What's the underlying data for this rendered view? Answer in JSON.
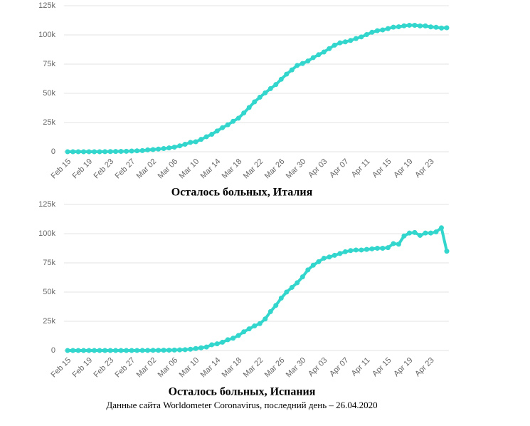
{
  "chart_data": [
    {
      "type": "line",
      "title": "Осталось больных, Италия",
      "color": "#33d6cc",
      "grid": true,
      "ylim": [
        0,
        125000
      ],
      "yticks": [
        0,
        {
          "value": 25000,
          "label": "25k"
        },
        {
          "value": 50000,
          "label": "50k"
        },
        {
          "value": 75000,
          "label": "75k"
        },
        {
          "value": 100000,
          "label": "100k"
        },
        {
          "value": 125000,
          "label": "125k"
        }
      ],
      "categories": [
        "Feb 15",
        null,
        null,
        null,
        "Feb 19",
        null,
        null,
        null,
        "Feb 23",
        null,
        null,
        null,
        "Feb 27",
        null,
        null,
        null,
        "Mar 02",
        null,
        null,
        null,
        "Mar 06",
        null,
        null,
        null,
        "Mar 10",
        null,
        null,
        null,
        "Mar 14",
        null,
        null,
        null,
        "Mar 18",
        null,
        null,
        null,
        "Mar 22",
        null,
        null,
        null,
        "Mar 26",
        null,
        null,
        null,
        "Mar 30",
        null,
        null,
        null,
        "Apr 03",
        null,
        null,
        null,
        "Apr 07",
        null,
        null,
        null,
        "Apr 11",
        null,
        null,
        null,
        "Apr 15",
        null,
        null,
        null,
        "Apr 19",
        null,
        null,
        null,
        "Apr 23",
        null,
        null,
        null
      ],
      "values": [
        3,
        3,
        3,
        3,
        3,
        3,
        19,
        76,
        146,
        214,
        303,
        384,
        600,
        800,
        1000,
        1577,
        1835,
        2263,
        2706,
        3296,
        3916,
        5061,
        6387,
        7985,
        8514,
        10590,
        12839,
        14955,
        17750,
        20603,
        23073,
        26062,
        28710,
        33190,
        37860,
        42681,
        46638,
        50418,
        54030,
        57521,
        62013,
        66414,
        70065,
        73880,
        75528,
        77635,
        80572,
        83049,
        85388,
        88274,
        91246,
        93187,
        94067,
        95262,
        96877,
        98273,
        100269,
        102253,
        103616,
        104291,
        105418,
        106607,
        106962,
        107771,
        108257,
        108237,
        107709,
        107699,
        106848,
        106527,
        105847,
        106103
      ]
    },
    {
      "type": "line",
      "title": "Осталось больных, Испания",
      "color": "#33d6cc",
      "grid": true,
      "ylim": [
        0,
        125000
      ],
      "yticks": [
        0,
        {
          "value": 25000,
          "label": "25k"
        },
        {
          "value": 50000,
          "label": "50k"
        },
        {
          "value": 75000,
          "label": "75k"
        },
        {
          "value": 100000,
          "label": "100k"
        },
        {
          "value": 125000,
          "label": "125k"
        }
      ],
      "categories": [
        "Feb 15",
        null,
        null,
        null,
        "Feb 19",
        null,
        null,
        null,
        "Feb 23",
        null,
        null,
        null,
        "Feb 27",
        null,
        null,
        null,
        "Mar 02",
        null,
        null,
        null,
        "Mar 06",
        null,
        null,
        null,
        "Mar 10",
        null,
        null,
        null,
        "Mar 14",
        null,
        null,
        null,
        "Mar 18",
        null,
        null,
        null,
        "Mar 22",
        null,
        null,
        null,
        "Mar 26",
        null,
        null,
        null,
        "Mar 30",
        null,
        null,
        null,
        "Apr 03",
        null,
        null,
        null,
        "Apr 07",
        null,
        null,
        null,
        "Apr 11",
        null,
        null,
        null,
        "Apr 15",
        null,
        null,
        null,
        "Apr 19",
        null,
        null,
        null,
        "Apr 23",
        null,
        null,
        null
      ],
      "values": [
        2,
        2,
        2,
        2,
        2,
        2,
        2,
        2,
        2,
        2,
        6,
        13,
        15,
        32,
        45,
        84,
        120,
        165,
        222,
        259,
        400,
        500,
        673,
        1073,
        1695,
        2277,
        2940,
        4906,
        5679,
        7100,
        9200,
        10500,
        12900,
        16000,
        18500,
        21000,
        23000,
        27000,
        33300,
        38600,
        44800,
        50000,
        54000,
        58000,
        63000,
        69000,
        73000,
        76000,
        79000,
        80000,
        81500,
        83000,
        84500,
        85500,
        86000,
        86000,
        86500,
        87000,
        87500,
        87500,
        88000,
        91500,
        91000,
        98000,
        100500,
        101000,
        98500,
        100500,
        100500,
        101500,
        105000,
        85000
      ]
    }
  ],
  "caption": "Данные сайта Worldometer Coronavirus, последний день – 26.04.2020"
}
